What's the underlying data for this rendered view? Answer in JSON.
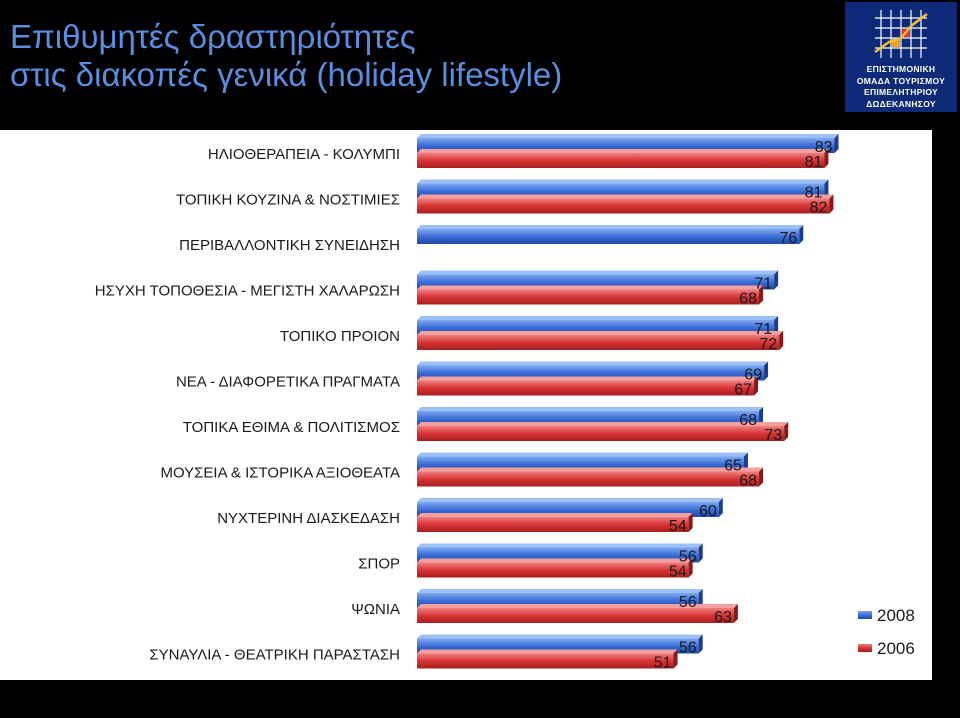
{
  "title": {
    "line1": "Επιθυμητές δραστηριότητες",
    "line2": "στις διακοπές γενικά (holiday lifestyle)"
  },
  "logo": {
    "line1": "ΕΠΙΣΤΗΜΟΝΙΚΗ",
    "line2": "ΟΜΑΔΑ ΤΟΥΡΙΣΜΟΥ",
    "line3": "ΕΠΙΜΕΛΗΤΗΡΙΟΥ",
    "line4": "ΔΩΔΕΚΑΝΗΣΟΥ"
  },
  "colors": {
    "series_2008": "#3a6fd8",
    "series_2006": "#d83434",
    "background": "#000000",
    "panel": "#ffffff",
    "title": "#5a8fe0",
    "logo_bg": "#0c2a78"
  },
  "chart_data": {
    "type": "bar",
    "orientation": "horizontal",
    "categories": [
      "ΗΛΙΟΘΕΡΑΠΕΙΑ - ΚΟΛΥΜΠΙ",
      "ΤΟΠΙΚΗ ΚΟΥΖΙΝΑ & ΝΟΣΤΙΜΙΕΣ",
      "ΠΕΡΙΒΑΛΛΟΝΤΙΚΗ ΣΥΝΕΙΔΗΣΗ",
      "ΗΣΥΧΗ ΤΟΠΟΘΕΣΙΑ - ΜΕΓΙΣΤΗ ΧΑΛΑΡΩΣΗ",
      "ΤΟΠΙΚΟ ΠΡΟΙΟΝ",
      "ΝΕΑ - ΔΙΑΦΟΡΕΤΙΚΑ ΠΡΑΓΜΑΤΑ",
      "ΤΟΠΙΚΑ ΕΘΙΜΑ & ΠΟΛΙΤΙΣΜΟΣ",
      "ΜΟΥΣΕΙΑ & ΙΣΤΟΡΙΚΑ ΑΞΙΟΘΕΑΤΑ",
      "ΝΥΧΤΕΡΙΝΗ ΔΙΑΣΚΕΔΑΣΗ",
      "ΣΠΟΡ",
      "ΨΩΝΙΑ",
      "ΣΥΝΑΥΛΙΑ - ΘΕΑΤΡΙΚΗ ΠΑΡΑΣΤΑΣΗ"
    ],
    "series": [
      {
        "name": "2008",
        "values": [
          83,
          81,
          76,
          71,
          71,
          69,
          68,
          65,
          60,
          56,
          56,
          56
        ]
      },
      {
        "name": "2006",
        "values": [
          81,
          82,
          null,
          68,
          72,
          67,
          73,
          68,
          54,
          54,
          63,
          51
        ]
      }
    ],
    "legend_position": "bottom-right",
    "grid": false
  }
}
